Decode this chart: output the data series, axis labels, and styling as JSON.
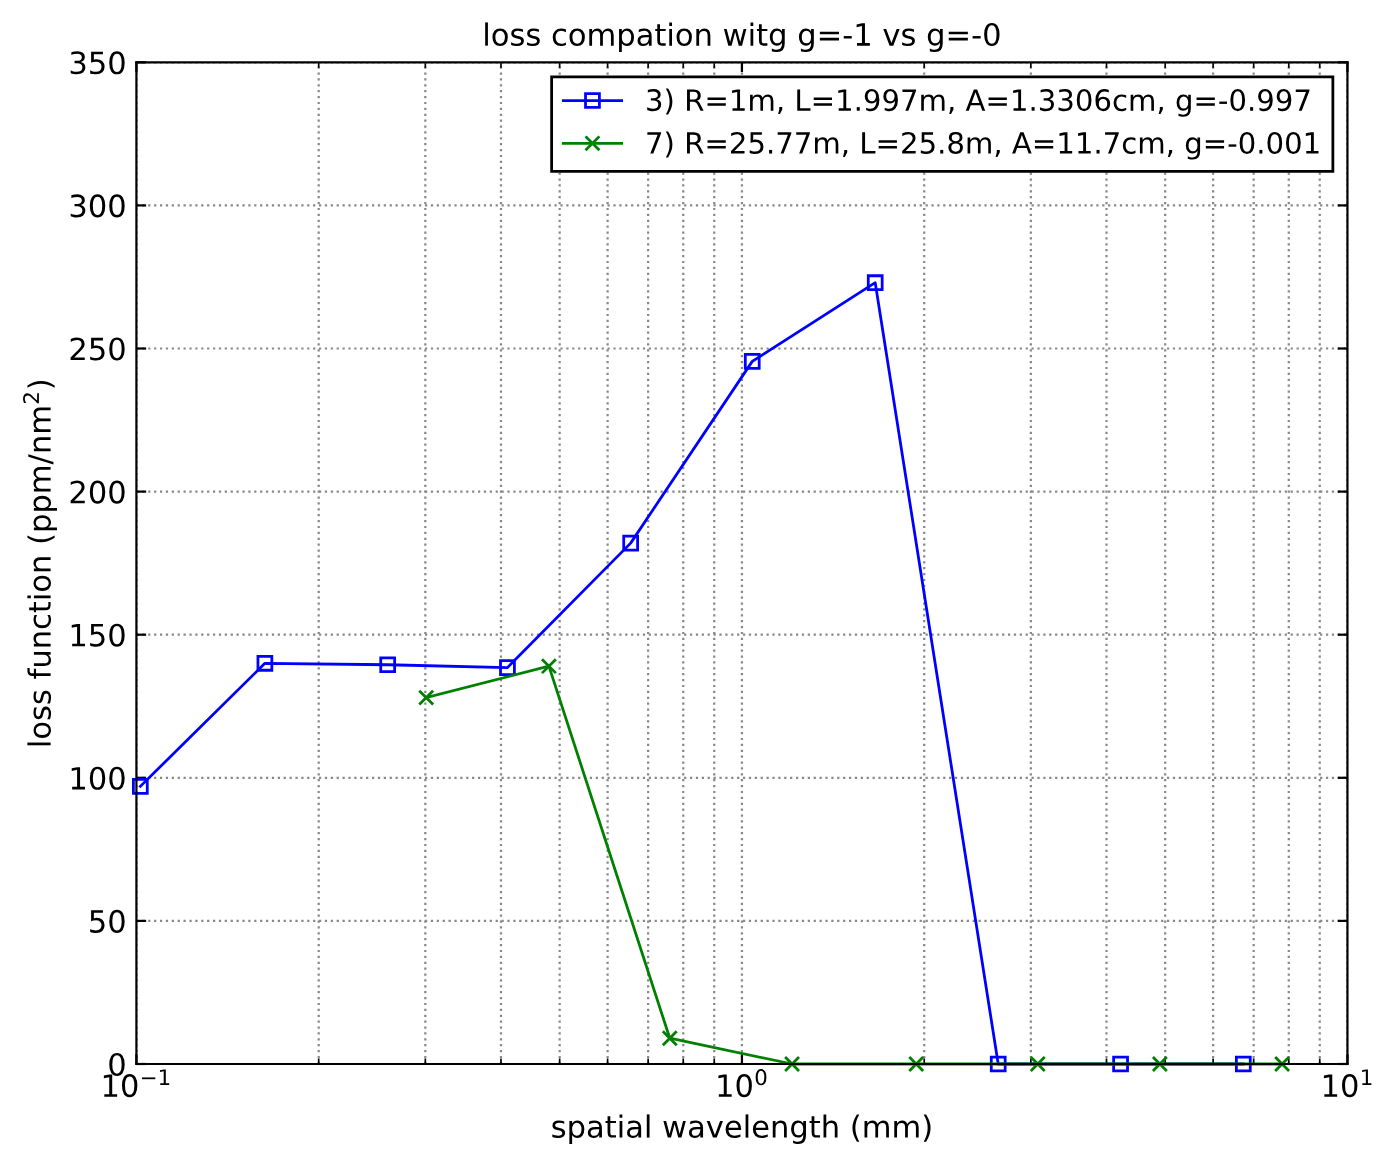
{
  "chart_data": {
    "type": "line",
    "title": "loss compation witg g=-1 vs g=-0",
    "xlabel": "spatial wavelength (mm)",
    "ylabel": "loss function (ppm/nm$^{2}$)",
    "log": "x",
    "xlim": [
      0.1,
      10
    ],
    "xticks": [
      {
        "value": 0.1,
        "label": "10$^{−1}$"
      },
      {
        "value": 1,
        "label": "10$^{0}$"
      },
      {
        "value": 10,
        "label": "10$^{1}$"
      }
    ],
    "ylim": [
      0,
      350
    ],
    "yticks": [
      0,
      50,
      100,
      150,
      200,
      250,
      300,
      350
    ],
    "grid": true,
    "legend": "top right",
    "line_style": "solid",
    "series": [
      {
        "name": "3) R=1m, L=1.997m, A=1.3306cm, g=-0.997",
        "color": "#0000ff",
        "marker": "square",
        "x": [
          0.1015,
          0.163,
          0.26,
          0.41,
          0.655,
          1.04,
          1.66,
          2.65,
          4.22,
          6.73
        ],
        "values": [
          97,
          140,
          139.5,
          138.5,
          182,
          245.5,
          273,
          0,
          0,
          0
        ]
      },
      {
        "name": "7) R=25.77m, L=25.8m, A=11.7cm, g=-0.001",
        "color": "#008000",
        "marker": "cross",
        "x": [
          0.301,
          0.48,
          0.76,
          1.21,
          1.94,
          3.08,
          4.9,
          7.8
        ],
        "values": [
          128,
          139,
          9,
          0,
          0,
          0,
          0,
          0
        ]
      }
    ]
  }
}
